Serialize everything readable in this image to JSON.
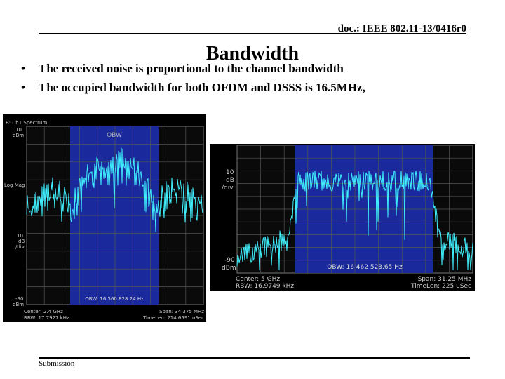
{
  "header": {
    "doc_id": "doc.: IEEE 802.11-13/0416r0"
  },
  "title": "Bandwidth",
  "bullets": [
    "The received noise is proportional to the channel bandwidth",
    "The occupied bandwidth for both OFDM and DSSS is 16.5MHz,"
  ],
  "left_plot": {
    "trace_name": "B: Ch1 Spectrum",
    "top_level": "10",
    "top_unit": "dBm",
    "format": "Log Mag",
    "scale": "10",
    "scale_unit": "dB",
    "scale_div": "/div",
    "bottom_level": "-90",
    "bottom_unit": "dBm",
    "band_label": "OBW",
    "obw": "OBW: 16 560 828.24 Hz",
    "center": "Center: 2.4 GHz",
    "rbw": "RBW: 17.7927 kHz",
    "span": "Span: 34.375 MHz",
    "timelen": "TimeLen: 214.6591 uSec"
  },
  "right_plot": {
    "scale": "10",
    "scale_unit": "dB",
    "scale_div": "/div",
    "bottom_level": "-90",
    "bottom_unit": "dBm",
    "obw": "OBW: 16 462 523.65 Hz",
    "center": "Center: 5 GHz",
    "rbw": "RBW: 16.9749 kHz",
    "span": "Span: 31.25 MHz",
    "timelen": "TimeLen: 225 uSec"
  },
  "footer": {
    "label": "Submission"
  }
}
